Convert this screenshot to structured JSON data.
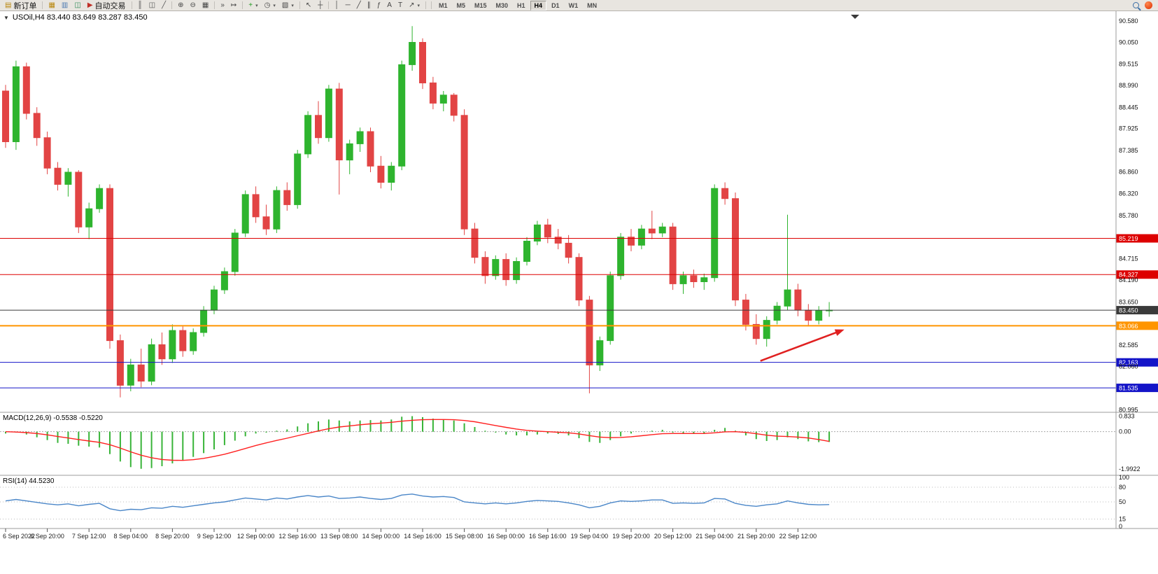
{
  "toolbar": {
    "buttons": [
      {
        "name": "new-order-button",
        "icon": "new-order-icon",
        "glyph": "▤",
        "color": "#b8860b",
        "label": "新订单"
      },
      {
        "sep": true
      },
      {
        "name": "new-chart-button",
        "icon": "new-chart-icon",
        "glyph": "▦",
        "color": "#b8860b"
      },
      {
        "name": "profiles-button",
        "icon": "profiles-icon",
        "glyph": "▥",
        "color": "#4a78b0"
      },
      {
        "name": "data-window-button",
        "icon": "data-window-icon",
        "glyph": "◫",
        "color": "#2e8b57"
      },
      {
        "name": "auto-trading-button",
        "icon": "play-icon",
        "glyph": "▶",
        "color": "#c03028",
        "label": "自动交易"
      },
      {
        "sep": true
      },
      {
        "name": "bar-chart-button",
        "icon": "bar-chart-icon",
        "glyph": "║",
        "color": "#555555"
      },
      {
        "name": "candlestick-button",
        "icon": "candlestick-icon",
        "glyph": "◫",
        "color": "#555555"
      },
      {
        "name": "line-chart-button",
        "icon": "line-chart-icon",
        "glyph": "╱",
        "color": "#555555"
      },
      {
        "sep": true
      },
      {
        "name": "zoom-in-button",
        "icon": "zoom-in-icon",
        "glyph": "⊕",
        "color": "#444444"
      },
      {
        "name": "zoom-out-button",
        "icon": "zoom-out-icon",
        "glyph": "⊖",
        "color": "#444444"
      },
      {
        "name": "tile-windows-button",
        "icon": "tile-windows-icon",
        "glyph": "▦",
        "color": "#444444"
      },
      {
        "sep": true
      },
      {
        "name": "auto-scroll-button",
        "icon": "auto-scroll-icon",
        "glyph": "»",
        "color": "#444444"
      },
      {
        "name": "chart-shift-button",
        "icon": "chart-shift-icon",
        "glyph": "↦",
        "color": "#444444"
      },
      {
        "sep": true
      },
      {
        "name": "indicators-button",
        "icon": "add-indicator-icon",
        "glyph": "+",
        "color": "#1f9a1f",
        "caret": true
      },
      {
        "name": "periods-button",
        "icon": "clock-icon",
        "glyph": "◷",
        "color": "#444444",
        "caret": true
      },
      {
        "name": "templates-button",
        "icon": "template-icon",
        "glyph": "▧",
        "color": "#444444",
        "caret": true
      },
      {
        "sep": true
      },
      {
        "name": "cursor-button",
        "icon": "cursor-icon",
        "glyph": "↖",
        "color": "#444444"
      },
      {
        "name": "crosshair-button",
        "icon": "crosshair-icon",
        "glyph": "┼",
        "color": "#444444"
      },
      {
        "sep": true
      },
      {
        "name": "vertical-line-button",
        "icon": "vertical-line-icon",
        "glyph": "│",
        "color": "#444444"
      },
      {
        "name": "horizontal-line-button",
        "icon": "horizontal-line-icon",
        "glyph": "─",
        "color": "#444444"
      },
      {
        "name": "trendline-button",
        "icon": "trendline-icon",
        "glyph": "╱",
        "color": "#444444"
      },
      {
        "name": "channel-button",
        "icon": "channel-icon",
        "glyph": "∥",
        "color": "#444444"
      },
      {
        "name": "fibonacci-button",
        "icon": "fibonacci-icon",
        "glyph": "ƒ",
        "color": "#444444"
      },
      {
        "name": "text-button",
        "icon": "text-icon",
        "glyph": "A",
        "color": "#444444"
      },
      {
        "name": "label-button",
        "icon": "label-icon",
        "glyph": "T",
        "color": "#444444"
      },
      {
        "name": "arrows-button",
        "icon": "arrow-icon",
        "glyph": "↗",
        "color": "#444444",
        "caret": true
      },
      {
        "sep": true
      }
    ],
    "timeframes": {
      "items": [
        "M1",
        "M5",
        "M15",
        "M30",
        "H1",
        "H4",
        "D1",
        "W1",
        "MN"
      ],
      "active": "H4"
    }
  },
  "chart": {
    "title_caret": "▼",
    "title": "USOil,H4  83.440 83.649 83.287 83.450"
  },
  "chart_data": {
    "type": "candlestick",
    "symbol": "USOil",
    "timeframe": "H4",
    "ohlc_display": {
      "open": "83.440",
      "high": "83.649",
      "low": "83.287",
      "close": "83.450"
    },
    "ylim": [
      80.95,
      90.8
    ],
    "price_ticks": [
      "90.580",
      "90.050",
      "89.515",
      "88.990",
      "88.445",
      "87.925",
      "87.385",
      "86.860",
      "86.320",
      "85.780",
      "84.715",
      "84.190",
      "83.650",
      "82.585",
      "82.060",
      "80.995"
    ],
    "hlines": [
      {
        "value": 85.219,
        "label": "85.219",
        "color": "#dd0000",
        "width": 1
      },
      {
        "value": 84.327,
        "label": "84.327",
        "color": "#dd0000",
        "width": 1
      },
      {
        "value": 83.45,
        "label": "83.450",
        "color": "#3a3a3a",
        "width": 1
      },
      {
        "value": 83.066,
        "label": "83.066",
        "color": "#ff9500",
        "width": 2
      },
      {
        "value": 82.163,
        "label": "82.163",
        "color": "#1414c8",
        "width": 1
      },
      {
        "value": 81.535,
        "label": "81.535",
        "color": "#1414c8",
        "width": 1
      }
    ],
    "candles": [
      [
        88.85,
        89.0,
        87.45,
        87.6
      ],
      [
        87.6,
        89.6,
        87.4,
        89.45
      ],
      [
        89.45,
        89.55,
        88.15,
        88.3
      ],
      [
        88.3,
        88.45,
        87.5,
        87.7
      ],
      [
        87.7,
        87.85,
        86.8,
        86.95
      ],
      [
        86.95,
        87.1,
        86.4,
        86.55
      ],
      [
        86.55,
        86.95,
        86.25,
        86.85
      ],
      [
        86.85,
        86.9,
        85.35,
        85.5
      ],
      [
        85.5,
        86.1,
        85.2,
        85.95
      ],
      [
        85.95,
        86.55,
        85.85,
        86.45
      ],
      [
        86.45,
        86.55,
        82.5,
        82.7
      ],
      [
        82.7,
        82.85,
        81.3,
        81.6
      ],
      [
        81.6,
        82.25,
        81.45,
        82.1
      ],
      [
        82.1,
        82.5,
        81.55,
        81.7
      ],
      [
        81.7,
        82.75,
        81.6,
        82.6
      ],
      [
        82.6,
        82.9,
        82.1,
        82.25
      ],
      [
        82.25,
        83.1,
        82.15,
        82.95
      ],
      [
        82.95,
        83.05,
        82.3,
        82.45
      ],
      [
        82.45,
        83.0,
        82.35,
        82.9
      ],
      [
        82.9,
        83.55,
        82.8,
        83.45
      ],
      [
        83.45,
        84.05,
        83.35,
        83.95
      ],
      [
        83.95,
        84.5,
        83.85,
        84.4
      ],
      [
        84.4,
        85.45,
        84.3,
        85.35
      ],
      [
        85.35,
        86.4,
        85.25,
        86.3
      ],
      [
        86.3,
        86.5,
        85.6,
        85.75
      ],
      [
        85.75,
        86.05,
        85.3,
        85.45
      ],
      [
        85.45,
        86.5,
        85.35,
        86.4
      ],
      [
        86.4,
        86.6,
        85.9,
        86.05
      ],
      [
        86.05,
        87.4,
        85.95,
        87.3
      ],
      [
        87.3,
        88.35,
        87.2,
        88.25
      ],
      [
        88.25,
        88.6,
        87.55,
        87.7
      ],
      [
        87.7,
        89.0,
        87.6,
        88.9
      ],
      [
        88.9,
        89.05,
        86.3,
        87.15
      ],
      [
        87.15,
        87.65,
        86.8,
        87.55
      ],
      [
        87.55,
        87.95,
        87.35,
        87.85
      ],
      [
        87.85,
        87.95,
        86.85,
        87.0
      ],
      [
        87.0,
        87.25,
        86.45,
        86.6
      ],
      [
        86.6,
        87.1,
        86.4,
        87.0
      ],
      [
        87.0,
        89.6,
        86.9,
        89.5
      ],
      [
        89.5,
        90.45,
        89.35,
        90.05
      ],
      [
        90.05,
        90.15,
        88.9,
        89.05
      ],
      [
        89.05,
        89.2,
        88.4,
        88.55
      ],
      [
        88.55,
        88.85,
        88.35,
        88.75
      ],
      [
        88.75,
        88.8,
        88.1,
        88.25
      ],
      [
        88.25,
        88.4,
        85.3,
        85.45
      ],
      [
        85.45,
        85.6,
        84.6,
        84.75
      ],
      [
        84.75,
        84.9,
        84.1,
        84.3
      ],
      [
        84.3,
        84.8,
        84.2,
        84.7
      ],
      [
        84.7,
        84.85,
        84.05,
        84.2
      ],
      [
        84.2,
        84.75,
        84.1,
        84.65
      ],
      [
        84.65,
        85.25,
        84.55,
        85.15
      ],
      [
        85.15,
        85.65,
        85.05,
        85.55
      ],
      [
        85.55,
        85.7,
        85.1,
        85.25
      ],
      [
        85.25,
        85.45,
        84.95,
        85.1
      ],
      [
        85.1,
        85.3,
        84.6,
        84.75
      ],
      [
        84.75,
        84.85,
        83.55,
        83.7
      ],
      [
        83.7,
        83.8,
        81.4,
        82.1
      ],
      [
        82.1,
        82.8,
        81.95,
        82.7
      ],
      [
        82.7,
        84.4,
        82.6,
        84.3
      ],
      [
        84.3,
        85.35,
        84.2,
        85.25
      ],
      [
        85.25,
        85.45,
        84.9,
        85.05
      ],
      [
        85.05,
        85.55,
        84.95,
        85.45
      ],
      [
        85.45,
        85.9,
        85.2,
        85.35
      ],
      [
        85.35,
        85.6,
        85.25,
        85.5
      ],
      [
        85.5,
        85.6,
        83.95,
        84.1
      ],
      [
        84.1,
        84.4,
        83.85,
        84.3
      ],
      [
        84.3,
        84.45,
        84.0,
        84.15
      ],
      [
        84.15,
        84.35,
        83.95,
        84.25
      ],
      [
        84.25,
        86.55,
        84.15,
        86.45
      ],
      [
        86.45,
        86.6,
        86.05,
        86.2
      ],
      [
        86.2,
        86.35,
        83.55,
        83.7
      ],
      [
        83.7,
        83.85,
        82.95,
        83.1
      ],
      [
        83.1,
        83.35,
        82.6,
        82.75
      ],
      [
        82.75,
        83.3,
        82.55,
        83.2
      ],
      [
        83.2,
        83.65,
        83.1,
        83.55
      ],
      [
        83.55,
        85.8,
        83.45,
        83.95
      ],
      [
        83.95,
        84.1,
        83.3,
        83.45
      ],
      [
        83.45,
        83.6,
        83.05,
        83.2
      ],
      [
        83.2,
        83.55,
        83.1,
        83.44
      ],
      [
        83.44,
        83.649,
        83.287,
        83.45
      ]
    ],
    "time_labels": [
      "6 Sep 2022",
      "6 Sep 20:00",
      "7 Sep 12:00",
      "8 Sep 04:00",
      "8 Sep 20:00",
      "9 Sep 12:00",
      "12 Sep 00:00",
      "12 Sep 16:00",
      "13 Sep 08:00",
      "14 Sep 00:00",
      "14 Sep 16:00",
      "15 Sep 08:00",
      "16 Sep 00:00",
      "16 Sep 16:00",
      "19 Sep 04:00",
      "19 Sep 20:00",
      "20 Sep 12:00",
      "21 Sep 04:00",
      "21 Sep 20:00",
      "22 Sep 12:00"
    ],
    "colors": {
      "up": "#2eb42e",
      "down": "#e24444",
      "macd_hist": "#38b438",
      "macd_signal": "#ff2020",
      "rsi": "#4a86c8",
      "arrow": "#e02020"
    },
    "macd": {
      "label": "MACD(12,26,9) -0.5538 -0.5220",
      "range": [
        -2.3,
        1.0
      ],
      "scale": [
        {
          "v": 0.833,
          "t": "0.833"
        },
        {
          "v": 0,
          "t": "0.00"
        },
        {
          "v": -1.9922,
          "t": "-1.9922"
        }
      ],
      "hist": [
        -0.1,
        -0.05,
        -0.15,
        -0.3,
        -0.45,
        -0.6,
        -0.65,
        -0.75,
        -0.8,
        -0.85,
        -1.2,
        -1.6,
        -1.9,
        -1.99,
        -1.95,
        -1.85,
        -1.7,
        -1.55,
        -1.35,
        -1.15,
        -0.95,
        -0.72,
        -0.48,
        -0.25,
        -0.1,
        -0.05,
        0.05,
        0.12,
        0.28,
        0.45,
        0.55,
        0.65,
        0.6,
        0.55,
        0.6,
        0.62,
        0.6,
        0.65,
        0.8,
        0.833,
        0.78,
        0.7,
        0.65,
        0.6,
        0.45,
        0.25,
        0.05,
        -0.05,
        -0.15,
        -0.2,
        -0.2,
        -0.15,
        -0.1,
        -0.12,
        -0.2,
        -0.35,
        -0.55,
        -0.6,
        -0.45,
        -0.25,
        -0.1,
        0.0,
        0.05,
        0.1,
        -0.05,
        -0.1,
        -0.12,
        -0.1,
        0.1,
        0.2,
        0.05,
        -0.2,
        -0.4,
        -0.5,
        -0.45,
        -0.3,
        -0.4,
        -0.52,
        -0.56,
        -0.5538
      ],
      "signal": [
        0.0,
        -0.02,
        -0.05,
        -0.1,
        -0.17,
        -0.26,
        -0.34,
        -0.42,
        -0.5,
        -0.57,
        -0.7,
        -0.88,
        -1.08,
        -1.26,
        -1.4,
        -1.49,
        -1.53,
        -1.54,
        -1.5,
        -1.43,
        -1.33,
        -1.21,
        -1.06,
        -0.9,
        -0.74,
        -0.6,
        -0.47,
        -0.35,
        -0.22,
        -0.09,
        0.04,
        0.16,
        0.25,
        0.31,
        0.37,
        0.42,
        0.46,
        0.5,
        0.56,
        0.61,
        0.64,
        0.65,
        0.65,
        0.64,
        0.6,
        0.53,
        0.43,
        0.33,
        0.23,
        0.14,
        0.07,
        0.03,
        0.0,
        -0.03,
        -0.06,
        -0.12,
        -0.21,
        -0.29,
        -0.32,
        -0.31,
        -0.27,
        -0.22,
        -0.16,
        -0.11,
        -0.1,
        -0.1,
        -0.1,
        -0.1,
        -0.06,
        -0.01,
        0.0,
        -0.04,
        -0.11,
        -0.19,
        -0.24,
        -0.26,
        -0.29,
        -0.34,
        -0.42,
        -0.522
      ]
    },
    "rsi": {
      "label": "RSI(14) 44.5230",
      "range": [
        0,
        100
      ],
      "scale": [
        {
          "v": 100,
          "t": "100"
        },
        {
          "v": 80,
          "t": "80",
          "level": true
        },
        {
          "v": 50,
          "t": "50",
          "level": true
        },
        {
          "v": 15,
          "t": "15",
          "level": true
        },
        {
          "v": 0,
          "t": "0"
        }
      ],
      "values": [
        52,
        55,
        52,
        49,
        46,
        44,
        46,
        42,
        45,
        47,
        36,
        32,
        35,
        34,
        38,
        37,
        41,
        39,
        42,
        45,
        48,
        50,
        54,
        58,
        56,
        54,
        58,
        56,
        60,
        63,
        60,
        62,
        57,
        58,
        60,
        57,
        55,
        57,
        64,
        66,
        62,
        60,
        61,
        59,
        50,
        48,
        46,
        48,
        46,
        48,
        51,
        53,
        52,
        51,
        48,
        44,
        38,
        41,
        48,
        52,
        51,
        52,
        54,
        54,
        47,
        48,
        47,
        48,
        57,
        56,
        47,
        43,
        41,
        44,
        46,
        52,
        48,
        45,
        44,
        44.52
      ]
    },
    "arrow": {
      "from_bar": 72.4,
      "from_price": 82.2,
      "to_bar": 80.2,
      "to_price": 82.95
    }
  }
}
